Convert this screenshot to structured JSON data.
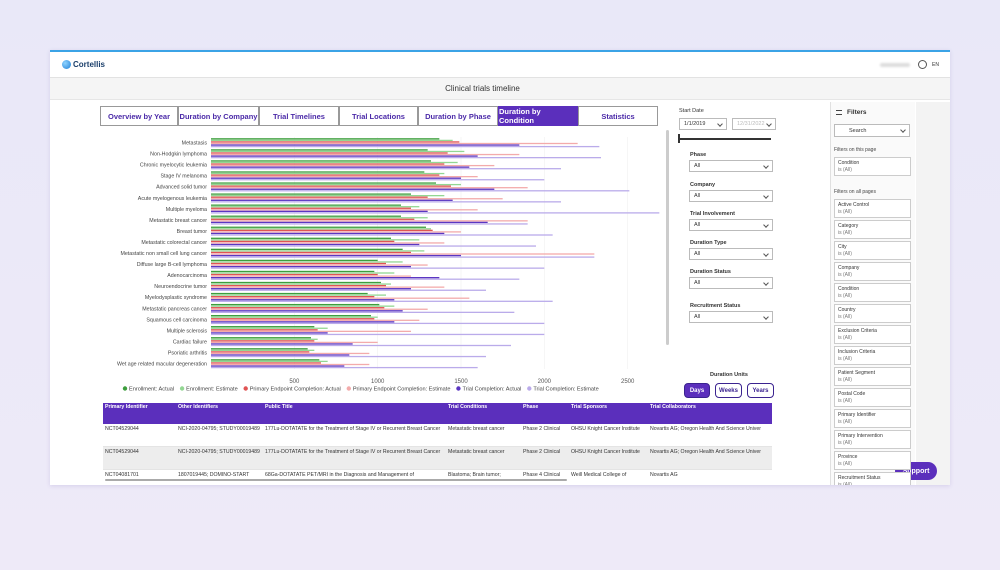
{
  "header": {
    "brand": "Cortellis",
    "language": "EN"
  },
  "page_title": "Clinical trials timeline",
  "tabs": [
    "Overview by Year",
    "Duration by Company",
    "Trial Timelines",
    "Trial Locations",
    "Duration by Phase",
    "Duration by Condition",
    "Statistics"
  ],
  "active_tab": 5,
  "chart_data": {
    "type": "bar",
    "orientation": "horizontal",
    "categories": [
      "Metastasis",
      "Non-Hodgkin lymphoma",
      "Chronic myelocytic leukemia",
      "Stage IV melanoma",
      "Advanced solid tumor",
      "Acute myelogenous leukemia",
      "Multiple myeloma",
      "Metastatic breast cancer",
      "Breast tumor",
      "Metastatic colorectal cancer",
      "Metastatic non small cell lung cancer",
      "Diffuse large B-cell lymphoma",
      "Adenocarcinoma",
      "Neuroendocrine tumor",
      "Myelodysplastic syndrome",
      "Metastatic pancreas cancer",
      "Squamous cell carcinoma",
      "Multiple sclerosis",
      "Cardiac failure",
      "Psoriatic arthritis",
      "Wet age related macular degeneration"
    ],
    "series": [
      {
        "name": "Enrollment: Actual",
        "color": "#3d9e3d",
        "values": [
          1370,
          1300,
          1320,
          1280,
          1350,
          1200,
          1140,
          1140,
          1290,
          1080,
          1150,
          1000,
          980,
          1020,
          940,
          1010,
          960,
          620,
          600,
          580,
          650
        ]
      },
      {
        "name": "Enrollment: Estimate",
        "color": "#93d793",
        "values": [
          1450,
          1520,
          1480,
          1400,
          1500,
          1400,
          1250,
          1300,
          1320,
          1250,
          1280,
          1150,
          1100,
          1080,
          1050,
          1100,
          1000,
          700,
          640,
          620,
          700
        ]
      },
      {
        "name": "Primary Endpoint Completion: Actual",
        "color": "#e05454",
        "values": [
          1490,
          1420,
          1400,
          1370,
          1440,
          1300,
          1200,
          1220,
          1330,
          1100,
          1200,
          1050,
          1000,
          1050,
          980,
          1040,
          980,
          640,
          620,
          590,
          660
        ]
      },
      {
        "name": "Primary Endpoint Completion: Estimate",
        "color": "#f3abab",
        "values": [
          2200,
          1850,
          1700,
          1600,
          1900,
          1750,
          1600,
          1900,
          1500,
          1400,
          2300,
          1300,
          1200,
          1400,
          1550,
          1300,
          1250,
          1200,
          1000,
          950,
          950
        ]
      },
      {
        "name": "Trial Completion: Actual",
        "color": "#5b36c2",
        "values": [
          1850,
          1600,
          1550,
          1500,
          1700,
          1450,
          1300,
          1660,
          1400,
          1250,
          1500,
          1200,
          1370,
          1200,
          1100,
          1150,
          1100,
          700,
          850,
          830,
          800
        ]
      },
      {
        "name": "Trial Completion: Estimate",
        "color": "#baabea",
        "values": [
          2330,
          2340,
          2100,
          2000,
          2510,
          2100,
          2690,
          1900,
          2050,
          1950,
          2300,
          2000,
          1850,
          1650,
          2050,
          1820,
          2000,
          2000,
          1800,
          1650,
          1600
        ]
      }
    ],
    "xlim": [
      0,
      2700
    ],
    "xticks": [
      500,
      1000,
      1500,
      2000,
      2500
    ]
  },
  "controls": {
    "start_date_label": "Start Date",
    "start_date": "1/1/2019",
    "end_date": "12/31/2022",
    "dropdowns": [
      {
        "label": "Phase",
        "value": "All"
      },
      {
        "label": "Company",
        "value": "All"
      },
      {
        "label": "Trial Involvement",
        "value": "All"
      },
      {
        "label": "Duration Type",
        "value": "All"
      },
      {
        "label": "Duration Status",
        "value": "All"
      },
      {
        "label": "Recruitment Status",
        "value": "All"
      }
    ],
    "duration_units_label": "Duration Units",
    "units": [
      "Days",
      "Weeks",
      "Years"
    ]
  },
  "filters": {
    "title": "Filters",
    "search": "Search",
    "on_page_label": "Filters on this page",
    "on_page": [
      {
        "name": "Condition",
        "state": "is (All)"
      }
    ],
    "all_pages_label": "Filters on all pages",
    "all_pages": [
      {
        "name": "Active Control",
        "state": "is (All)"
      },
      {
        "name": "Category",
        "state": "is (All)"
      },
      {
        "name": "City",
        "state": "is (All)"
      },
      {
        "name": "Company",
        "state": "is (All)"
      },
      {
        "name": "Condition",
        "state": "is (All)"
      },
      {
        "name": "Country",
        "state": "is (All)"
      },
      {
        "name": "Exclusion Criteria",
        "state": "is (All)"
      },
      {
        "name": "Inclusion Criteria",
        "state": "is (All)"
      },
      {
        "name": "Patient Segment",
        "state": "is (All)"
      },
      {
        "name": "Postal Code",
        "state": "is (All)"
      },
      {
        "name": "Primary Identifier",
        "state": "is (All)"
      },
      {
        "name": "Primary Intervention",
        "state": "is (All)"
      },
      {
        "name": "Province",
        "state": "is (All)"
      },
      {
        "name": "Recruitment Status",
        "state": "is (All)"
      }
    ]
  },
  "table": {
    "headers": [
      "Primary Identifier",
      "Other Identifiers",
      "Public Title",
      "Trial Conditions",
      "Phase",
      "Trial Sponsors",
      "Trial Collaborators"
    ],
    "rows": [
      [
        "NCT04529044",
        "NCI-2020-04795; STUDY00019489",
        "177Lu-DOTATATE for the Treatment of Stage IV or Recurrent Breast Cancer",
        "Metastatic breast cancer",
        "Phase 2 Clinical",
        "OHSU Knight Cancer Institute",
        "Novartis AG; Oregon Health And Science Univer"
      ],
      [
        "NCT04529044",
        "NCI-2020-04795; STUDY00019489",
        "177Lu-DOTATATE for the Treatment of Stage IV or Recurrent Breast Cancer",
        "Metastatic breast cancer",
        "Phase 2 Clinical",
        "OHSU Knight Cancer Institute",
        "Novartis AG; Oregon Health And Science Univer"
      ],
      [
        "NCT04081701",
        "1807019445; DOMINO-START",
        "68Ga-DOTATATE PET/MRI in the Diagnosis and Management of",
        "Blastoma; Brain tumor;",
        "Phase 4 Clinical",
        "Weill Medical College of",
        "Novartis AG"
      ]
    ]
  },
  "support": "Support"
}
